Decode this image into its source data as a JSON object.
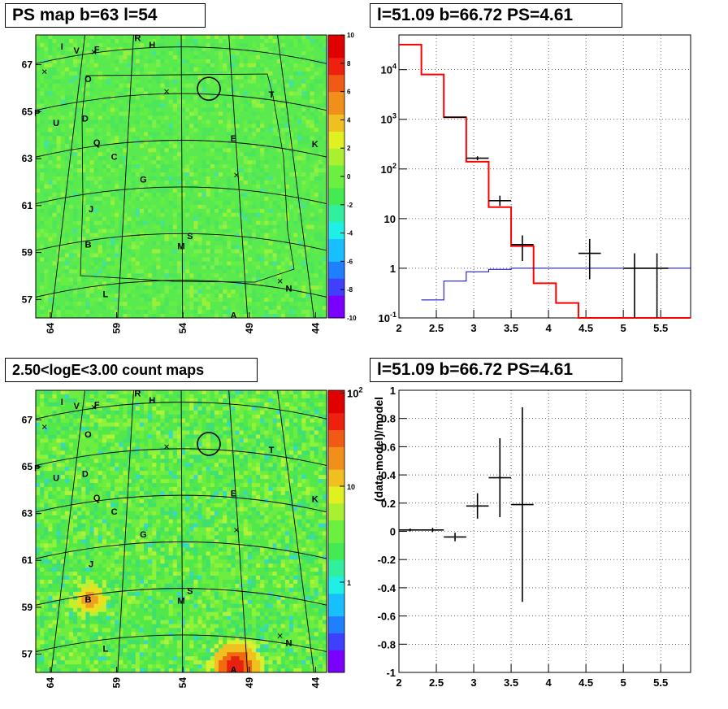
{
  "titles": {
    "tl": "PS map b=63 l=54",
    "tr": "l=51.09 b=66.72 PS=4.61",
    "bl": "2.50<logE<3.00 count maps",
    "br": "l=51.09 b=66.72 PS=4.61"
  },
  "chart_data": [
    {
      "type": "heatmap",
      "title": "PS map b=63 l=54",
      "x_ticks": [
        "64",
        "59",
        "54",
        "49",
        "44"
      ],
      "y_ticks": [
        "67",
        "65",
        "63",
        "61",
        "59",
        "57"
      ],
      "colorbar": {
        "min": -10,
        "max": 10,
        "ticks": [
          "10",
          "8",
          "6",
          "4",
          "2",
          "0",
          "-2",
          "-4",
          "-6",
          "-8",
          "-10"
        ],
        "scale": "linear"
      },
      "sources": [
        "I",
        "V",
        "F",
        "R",
        "H",
        "O",
        "T",
        "P",
        "U",
        "D",
        "E",
        "K",
        "Q",
        "C",
        "G",
        "J",
        "S",
        "B",
        "M",
        "N",
        "L",
        "A"
      ],
      "grid": true
    },
    {
      "type": "line",
      "title": "l=51.09 b=66.72 PS=4.61",
      "xlim": [
        2,
        5.9
      ],
      "ylim": [
        0.1,
        50000
      ],
      "y_scale": "log",
      "x_ticks": [
        "2",
        "2.5",
        "3",
        "3.5",
        "4",
        "4.5",
        "5",
        "5.5"
      ],
      "y_ticks": [
        "10^-1",
        "1",
        "10",
        "10^2",
        "10^3",
        "10^4"
      ],
      "grid": true,
      "series": [
        {
          "color": "#ff0000",
          "style": "step",
          "bins": [
            [
              2.0,
              2.3,
              32000
            ],
            [
              2.3,
              2.6,
              8000
            ],
            [
              2.6,
              2.9,
              1100
            ],
            [
              2.9,
              3.2,
              140
            ],
            [
              3.2,
              3.5,
              17
            ],
            [
              3.5,
              3.8,
              2.8
            ],
            [
              3.8,
              4.1,
              0.5
            ],
            [
              4.1,
              4.4,
              0.2
            ],
            [
              4.4,
              5.9,
              0.1
            ]
          ]
        },
        {
          "color": "#0000cc",
          "style": "step",
          "bins": [
            [
              2.3,
              2.6,
              0.23
            ],
            [
              2.6,
              2.9,
              0.55
            ],
            [
              2.9,
              3.2,
              0.85
            ],
            [
              3.2,
              3.5,
              0.95
            ],
            [
              3.5,
              3.8,
              1.0
            ],
            [
              3.8,
              5.9,
              1.0
            ]
          ]
        },
        {
          "color": "#000000",
          "style": "errorbars",
          "points": [
            {
              "x": 2.75,
              "xerr": 0.15,
              "y": 1100,
              "yerr_lo": 30,
              "yerr_hi": 30
            },
            {
              "x": 3.05,
              "xerr": 0.15,
              "y": 165,
              "yerr_lo": 15,
              "yerr_hi": 15
            },
            {
              "x": 3.35,
              "xerr": 0.15,
              "y": 23,
              "yerr_lo": 5,
              "yerr_hi": 6
            },
            {
              "x": 3.65,
              "xerr": 0.15,
              "y": 3.0,
              "yerr_lo": 1.6,
              "yerr_hi": 1.6
            },
            {
              "x": 4.55,
              "xerr": 0.15,
              "y": 2.0,
              "yerr_lo": 1.4,
              "yerr_hi": 1.9
            },
            {
              "x": 5.15,
              "xerr": 0.15,
              "y": 1.0,
              "yerr_lo": 0.95,
              "yerr_hi": 1.0
            },
            {
              "x": 5.45,
              "xerr": 0.15,
              "y": 1.0,
              "yerr_lo": 0.95,
              "yerr_hi": 1.0
            }
          ]
        }
      ]
    },
    {
      "type": "heatmap",
      "title": "2.50<logE<3.00 count maps",
      "x_ticks": [
        "64",
        "59",
        "54",
        "49",
        "44"
      ],
      "y_ticks": [
        "67",
        "65",
        "63",
        "61",
        "59",
        "57"
      ],
      "colorbar": {
        "scale": "log",
        "ticks": [
          "10^2",
          "10",
          "1"
        ]
      },
      "sources": [
        "I",
        "V",
        "F",
        "R",
        "H",
        "O",
        "T",
        "P",
        "U",
        "D",
        "E",
        "K",
        "Q",
        "C",
        "G",
        "J",
        "S",
        "B",
        "M",
        "N",
        "L",
        "A"
      ],
      "grid": true
    },
    {
      "type": "scatter",
      "title": "l=51.09 b=66.72 PS=4.61",
      "ylabel": "(data-model)/model",
      "xlim": [
        2,
        5.9
      ],
      "ylim": [
        -1,
        1
      ],
      "x_ticks": [
        "2",
        "2.5",
        "3",
        "3.5",
        "4",
        "4.5",
        "5",
        "5.5"
      ],
      "y_ticks": [
        "1",
        "0.8",
        "0.6",
        "0.4",
        "0.2",
        "0",
        "-0.2",
        "-0.4",
        "-0.6",
        "-0.8",
        "-1"
      ],
      "grid": true,
      "points": [
        {
          "x": 2.15,
          "xerr": 0.15,
          "y": 0.01,
          "yerr": 0.01
        },
        {
          "x": 2.45,
          "xerr": 0.15,
          "y": 0.01,
          "yerr": 0.015
        },
        {
          "x": 2.75,
          "xerr": 0.15,
          "y": -0.04,
          "yerr": 0.03
        },
        {
          "x": 3.05,
          "xerr": 0.15,
          "y": 0.18,
          "yerr": 0.09
        },
        {
          "x": 3.35,
          "xerr": 0.15,
          "y": 0.38,
          "yerr": 0.28
        },
        {
          "x": 3.65,
          "xerr": 0.15,
          "y": 0.19,
          "yerr": 0.69
        }
      ]
    }
  ]
}
